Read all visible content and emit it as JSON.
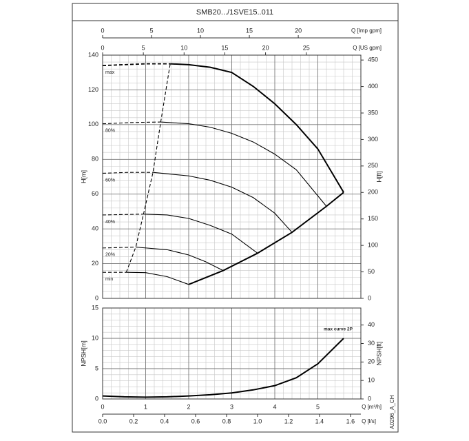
{
  "title": "SMB20.../1SVE15..011",
  "code": "A0296_A_CH",
  "chart_data": [
    {
      "type": "line",
      "ylabel": "H[m]",
      "y2label": "H[ft]",
      "color": "#000000",
      "grid": true,
      "xlim": [
        0,
        6
      ],
      "ylim": [
        0,
        140
      ],
      "yticks": [
        0,
        20,
        40,
        60,
        80,
        100,
        120,
        140
      ],
      "y2lim": [
        0,
        459.3
      ],
      "y2ticks": [
        0,
        50,
        100,
        150,
        200,
        250,
        300,
        350,
        400,
        450
      ],
      "top_axes": [
        {
          "label": "Q [Imp gpm]",
          "lim": [
            0,
            26.4
          ],
          "ticks": [
            0,
            5,
            10,
            15,
            20
          ]
        },
        {
          "label": "Q [US gpm]",
          "lim": [
            0,
            31.7
          ],
          "ticks": [
            0,
            5,
            10,
            15,
            20,
            25
          ]
        }
      ],
      "series": [
        {
          "name": "max",
          "x": [
            1.57,
            2,
            2.5,
            3,
            3.5,
            4,
            4.5,
            5,
            5.6
          ],
          "values": [
            135,
            134.5,
            133,
            130,
            122,
            112,
            100,
            86,
            61
          ],
          "lead_x": [
            0,
            0.5,
            1,
            1.57
          ],
          "lead_values": [
            134,
            134.5,
            135,
            135
          ]
        },
        {
          "name": "80%",
          "x": [
            1.35,
            2,
            2.5,
            3,
            3.5,
            4,
            4.5,
            5.2
          ],
          "values": [
            101.5,
            100.5,
            98.5,
            95,
            90,
            83,
            74,
            53
          ],
          "lead_x": [
            0,
            0.7,
            1.35
          ],
          "lead_values": [
            100.5,
            101.2,
            101.5
          ]
        },
        {
          "name": "60%",
          "x": [
            1.17,
            2,
            2.5,
            3,
            3.5,
            4,
            4.4
          ],
          "values": [
            72.5,
            70.5,
            68,
            64,
            58,
            49,
            38
          ],
          "lead_x": [
            0,
            0.6,
            1.17
          ],
          "lead_values": [
            72,
            72.5,
            72.5
          ]
        },
        {
          "name": "40%",
          "x": [
            0.95,
            1.5,
            2,
            2.5,
            3,
            3.6
          ],
          "values": [
            48.5,
            48,
            46,
            42,
            37,
            26
          ],
          "lead_x": [
            0,
            0.95
          ],
          "lead_values": [
            48,
            48.5
          ]
        },
        {
          "name": "20%",
          "x": [
            0.77,
            1.5,
            2,
            2.4,
            2.8
          ],
          "values": [
            29.5,
            28,
            25,
            21,
            16
          ],
          "lead_x": [
            0,
            0.77
          ],
          "lead_values": [
            29,
            29.5
          ]
        },
        {
          "name": "min",
          "x": [
            0.55,
            1,
            1.5,
            2
          ],
          "values": [
            15,
            14.8,
            12.5,
            8
          ],
          "lead_x": [
            0,
            0.55
          ],
          "lead_values": [
            15,
            15
          ]
        }
      ],
      "envelope": {
        "x": [
          2,
          2.8,
          3.6,
          4.4,
          5.2,
          5.6
        ],
        "values": [
          8,
          16,
          26,
          38,
          53,
          61
        ]
      },
      "limit_line": {
        "x": [
          0.55,
          0.77,
          0.95,
          1.17,
          1.35,
          1.57
        ],
        "values": [
          15,
          29.5,
          48.5,
          72.5,
          101.5,
          135
        ]
      }
    },
    {
      "type": "line",
      "ylabel": "NPSH[m]",
      "y2label": "NPSH[ft]",
      "color": "#000000",
      "grid": true,
      "xlabel": "Q [m³/h]",
      "xlim": [
        0,
        6
      ],
      "xticks": [
        0,
        1,
        2,
        3,
        4,
        5
      ],
      "ylim": [
        0,
        15
      ],
      "yticks": [
        0,
        5,
        10,
        15
      ],
      "y2lim": [
        0,
        49.2
      ],
      "y2ticks": [
        0,
        10,
        20,
        30,
        40
      ],
      "bottom_axis": {
        "label": "Q [l/s]",
        "lim": [
          0,
          1.667
        ],
        "ticks": [
          {
            "value": 0,
            "label": "0.0"
          },
          0.2,
          0.4,
          0.6,
          0.8,
          {
            "value": 1,
            "label": "1.0"
          },
          1.2,
          1.4,
          1.6
        ]
      },
      "series": [
        {
          "name": "max curve 2P",
          "x": [
            0,
            0.5,
            1,
            1.5,
            2,
            2.5,
            3,
            3.5,
            4,
            4.5,
            5,
            5.6
          ],
          "values": [
            0.5,
            0.35,
            0.3,
            0.35,
            0.5,
            0.7,
            1,
            1.5,
            2.2,
            3.5,
            5.8,
            10
          ]
        }
      ]
    }
  ]
}
